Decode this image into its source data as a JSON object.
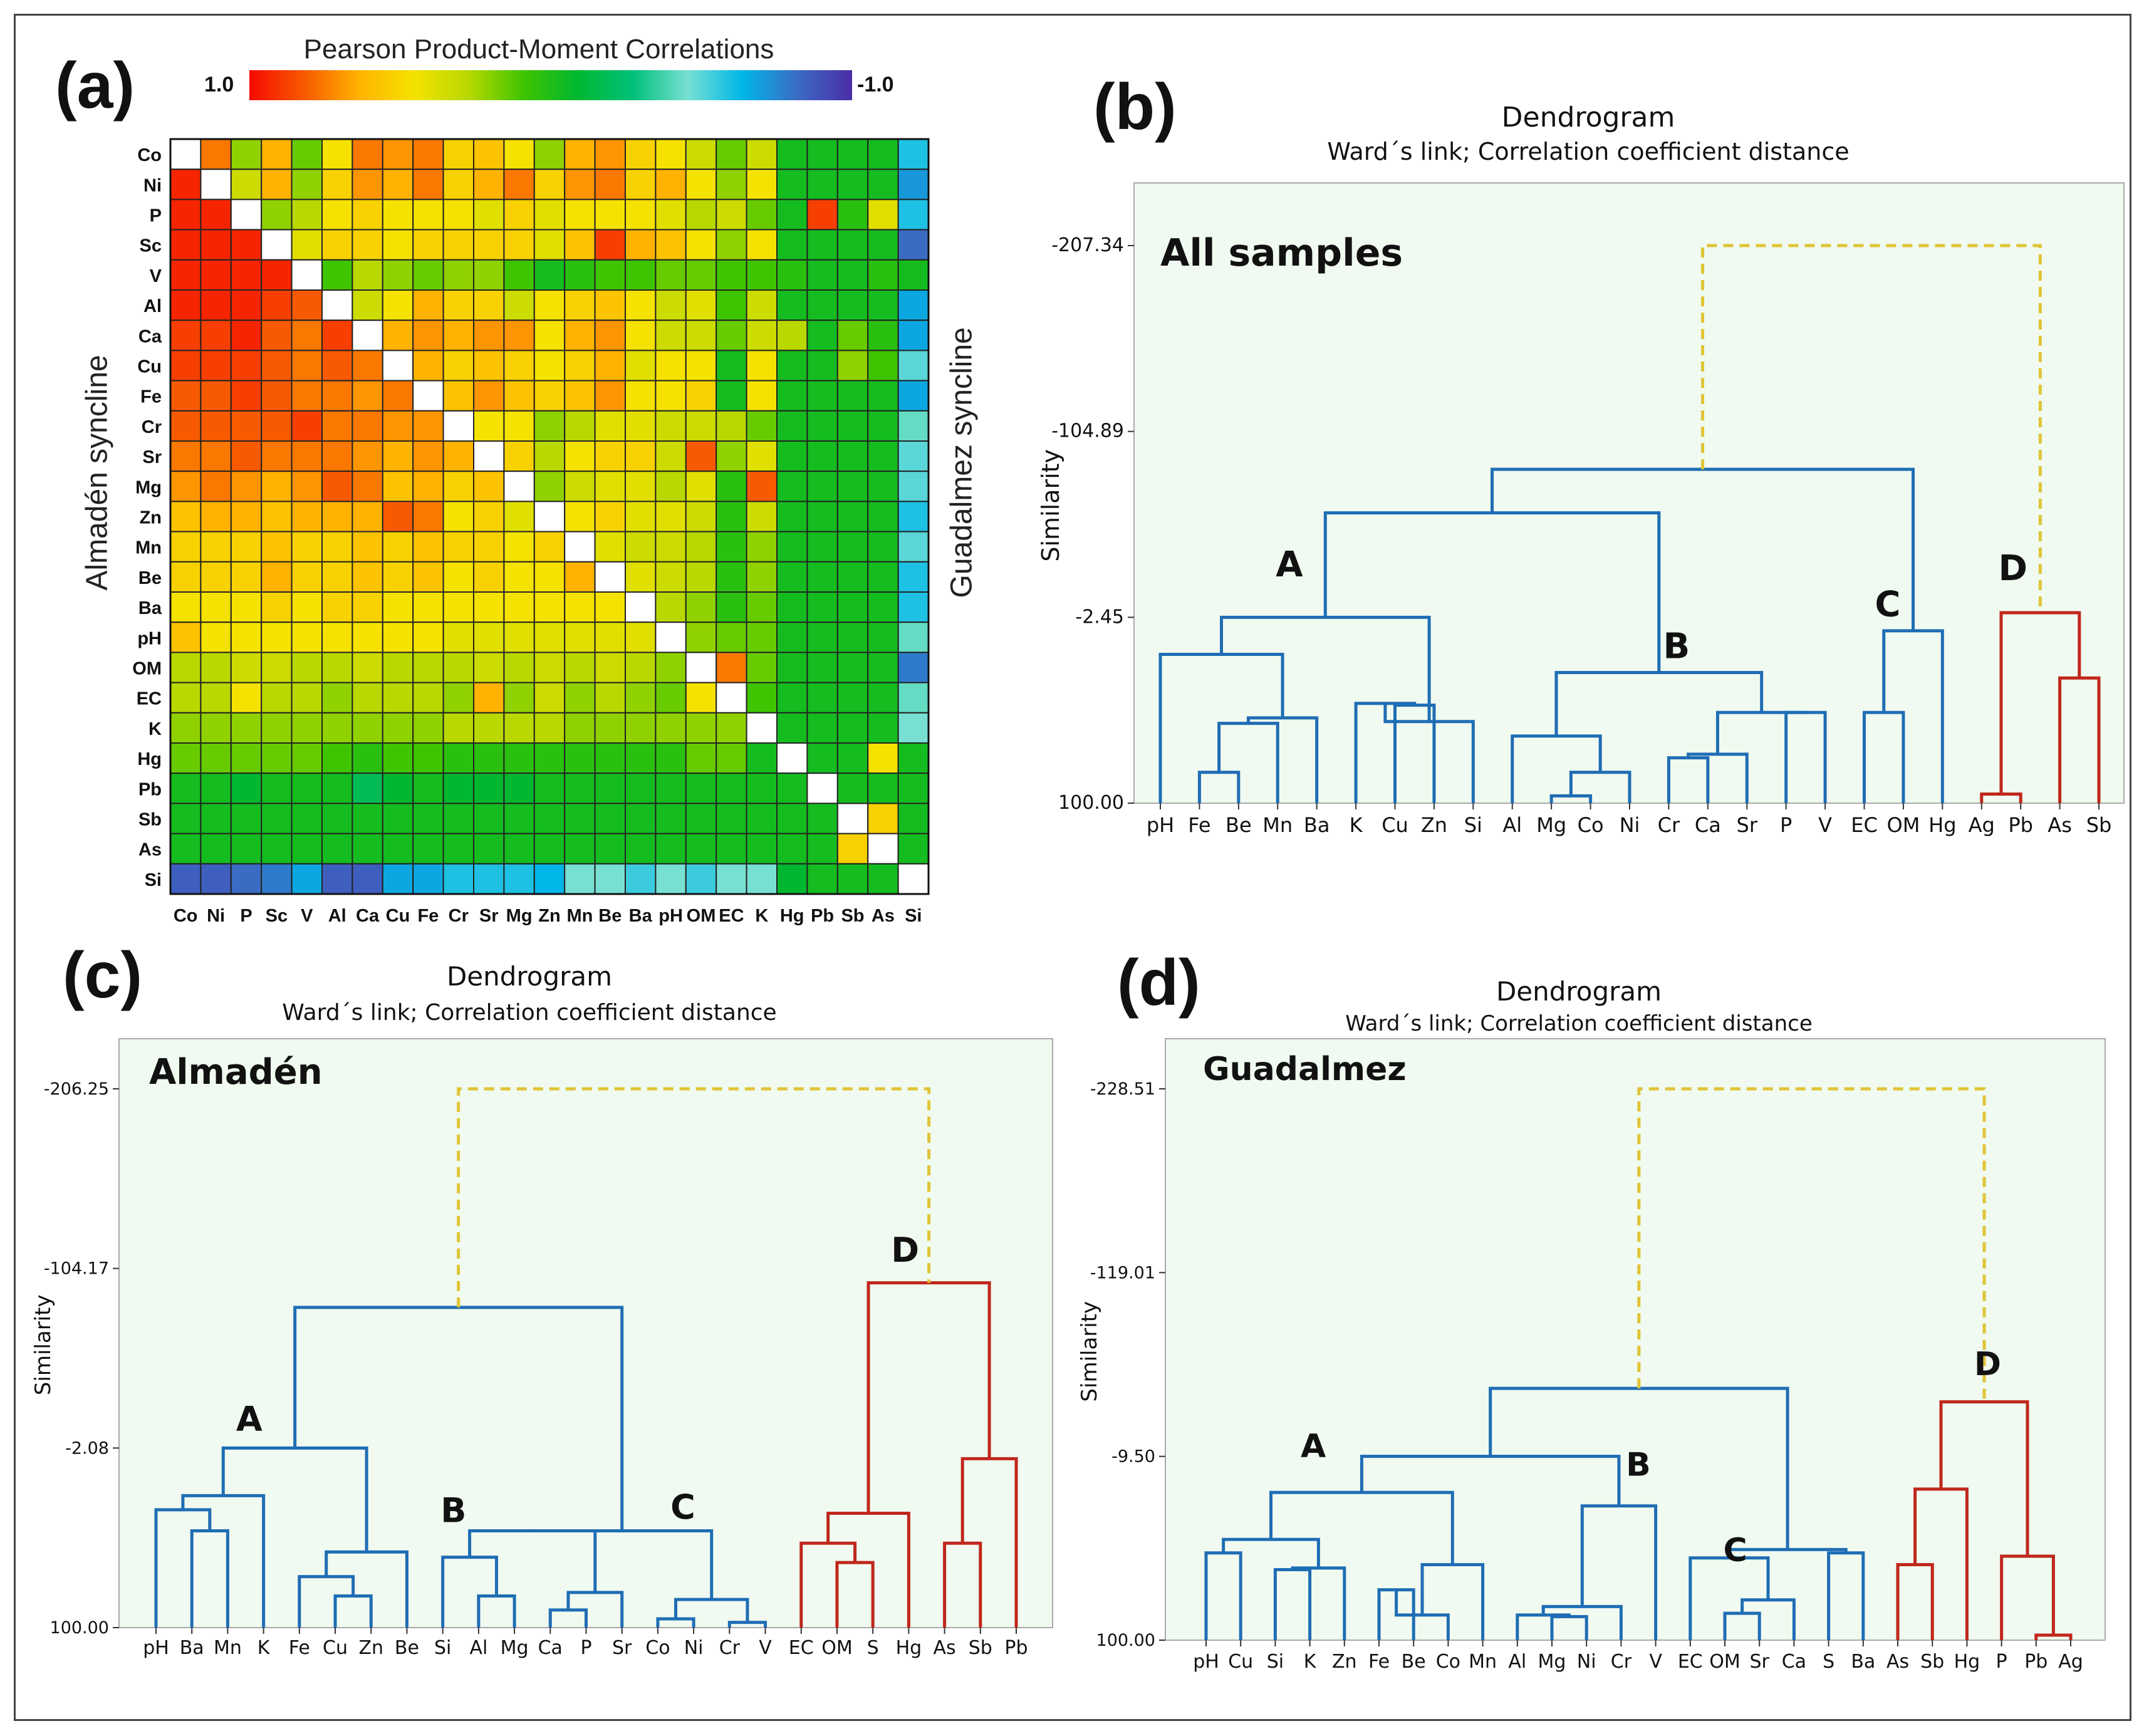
{
  "panels": {
    "a": "(a)",
    "b": "(b)",
    "c": "(c)",
    "d": "(d)"
  },
  "heatmap": {
    "title": "Pearson Product-Moment Correlations",
    "scale_max": "1.0",
    "scale_min": "-1.0",
    "left_label": "Almadén syncline",
    "right_label": "Guadalmez syncline"
  },
  "dendro_common": {
    "title": "Dendrogram",
    "subtitle": "Ward´s link; Correlation coefficient distance",
    "ylabel": "Similarity"
  },
  "colors": {
    "blue": "#1f6db5",
    "red": "#c0271d",
    "yellow": "#e0c435",
    "panel_bg": "#f0faf0",
    "panel_border": "#aaaaaa"
  },
  "chart_data": [
    {
      "type": "heatmap",
      "title": "Pearson Product-Moment Correlations",
      "labels": [
        "Co",
        "Ni",
        "P",
        "Sc",
        "V",
        "Al",
        "Ca",
        "Cu",
        "Fe",
        "Cr",
        "Sr",
        "Mg",
        "Zn",
        "Mn",
        "Be",
        "Ba",
        "pH",
        "OM",
        "EC",
        "K",
        "Hg",
        "Pb",
        "Sb",
        "As",
        "Si"
      ],
      "range": [
        -1.0,
        1.0
      ],
      "lower_triangle": "Almadén syncline",
      "upper_triangle": "Guadalmez syncline",
      "values": [
        [
          1,
          0.8,
          0.35,
          0.7,
          0.3,
          0.55,
          0.8,
          0.75,
          0.8,
          0.6,
          0.65,
          0.55,
          0.35,
          0.7,
          0.75,
          0.6,
          0.55,
          0.45,
          0.3,
          0.45,
          0.15,
          0.15,
          0.15,
          0.15,
          -0.45
        ],
        [
          0.95,
          1,
          0.45,
          0.7,
          0.35,
          0.6,
          0.75,
          0.7,
          0.8,
          0.6,
          0.7,
          0.8,
          0.6,
          0.75,
          0.8,
          0.6,
          0.7,
          0.55,
          0.35,
          0.55,
          0.15,
          0.15,
          0.15,
          0.15,
          -0.6
        ],
        [
          0.95,
          0.95,
          1,
          0.35,
          0.4,
          0.55,
          0.6,
          0.55,
          0.55,
          0.55,
          0.5,
          0.6,
          0.5,
          0.55,
          0.55,
          0.55,
          0.5,
          0.4,
          0.45,
          0.3,
          0.15,
          0.9,
          0.2,
          0.5,
          -0.45
        ],
        [
          0.95,
          0.95,
          0.95,
          1,
          0.5,
          0.6,
          0.6,
          0.55,
          0.6,
          0.6,
          0.6,
          0.6,
          0.5,
          0.65,
          0.9,
          0.7,
          0.65,
          0.55,
          0.35,
          0.55,
          0.15,
          0.15,
          0.15,
          0.15,
          -0.75
        ],
        [
          0.95,
          0.95,
          0.95,
          0.95,
          1,
          0.25,
          0.4,
          0.35,
          0.3,
          0.35,
          0.35,
          0.25,
          0.15,
          0.2,
          0.25,
          0.25,
          0.3,
          0.3,
          0.25,
          0.25,
          0.2,
          0.15,
          0.15,
          0.2,
          0.15
        ],
        [
          0.95,
          0.95,
          0.95,
          0.9,
          0.85,
          1,
          0.45,
          0.55,
          0.7,
          0.6,
          0.6,
          0.45,
          0.55,
          0.6,
          0.65,
          0.55,
          0.45,
          0.5,
          0.25,
          0.45,
          0.15,
          0.15,
          0.15,
          0.15,
          -0.55
        ],
        [
          0.9,
          0.9,
          0.95,
          0.85,
          0.8,
          0.9,
          1,
          0.7,
          0.75,
          0.7,
          0.75,
          0.75,
          0.55,
          0.7,
          0.75,
          0.55,
          0.45,
          0.45,
          0.3,
          0.45,
          0.4,
          0.15,
          0.3,
          0.2,
          -0.55
        ],
        [
          0.9,
          0.9,
          0.9,
          0.85,
          0.8,
          0.85,
          0.8,
          1,
          0.7,
          0.6,
          0.65,
          0.6,
          0.55,
          0.6,
          0.7,
          0.5,
          0.55,
          0.55,
          0.15,
          0.55,
          0.15,
          0.15,
          0.35,
          0.25,
          -0.35
        ],
        [
          0.85,
          0.85,
          0.9,
          0.85,
          0.8,
          0.8,
          0.75,
          0.8,
          1,
          0.65,
          0.75,
          0.65,
          0.6,
          0.65,
          0.75,
          0.55,
          0.55,
          0.6,
          0.15,
          0.55,
          0.15,
          0.15,
          0.15,
          0.15,
          -0.55
        ],
        [
          0.85,
          0.85,
          0.85,
          0.85,
          0.9,
          0.8,
          0.8,
          0.75,
          0.75,
          1,
          0.55,
          0.55,
          0.35,
          0.4,
          0.5,
          0.5,
          0.45,
          0.45,
          0.4,
          0.3,
          0.15,
          0.15,
          0.15,
          0.15,
          -0.25
        ],
        [
          0.8,
          0.8,
          0.85,
          0.8,
          0.8,
          0.8,
          0.75,
          0.7,
          0.75,
          0.7,
          1,
          0.6,
          0.4,
          0.55,
          0.6,
          0.6,
          0.45,
          0.85,
          0.35,
          0.5,
          0.15,
          0.15,
          0.15,
          0.15,
          -0.35
        ],
        [
          0.75,
          0.8,
          0.75,
          0.7,
          0.75,
          0.85,
          0.8,
          0.65,
          0.7,
          0.6,
          0.65,
          1,
          0.35,
          0.45,
          0.5,
          0.5,
          0.4,
          0.5,
          0.2,
          0.85,
          0.15,
          0.15,
          0.15,
          0.15,
          -0.35
        ],
        [
          0.65,
          0.7,
          0.7,
          0.65,
          0.7,
          0.7,
          0.7,
          0.85,
          0.8,
          0.55,
          0.6,
          0.5,
          1,
          0.55,
          0.6,
          0.5,
          0.5,
          0.45,
          0.2,
          0.45,
          0.15,
          0.15,
          0.15,
          0.15,
          -0.45
        ],
        [
          0.6,
          0.6,
          0.6,
          0.65,
          0.6,
          0.6,
          0.65,
          0.6,
          0.65,
          0.6,
          0.6,
          0.55,
          0.6,
          1,
          0.5,
          0.45,
          0.45,
          0.4,
          0.2,
          0.35,
          0.15,
          0.15,
          0.15,
          0.15,
          -0.35
        ],
        [
          0.6,
          0.6,
          0.6,
          0.7,
          0.6,
          0.6,
          0.65,
          0.6,
          0.65,
          0.55,
          0.6,
          0.55,
          0.55,
          0.7,
          1,
          0.5,
          0.45,
          0.4,
          0.2,
          0.35,
          0.15,
          0.15,
          0.15,
          0.15,
          -0.45
        ],
        [
          0.55,
          0.55,
          0.55,
          0.6,
          0.55,
          0.6,
          0.6,
          0.55,
          0.55,
          0.55,
          0.55,
          0.55,
          0.55,
          0.55,
          0.55,
          1,
          0.4,
          0.35,
          0.2,
          0.3,
          0.15,
          0.15,
          0.15,
          0.15,
          -0.45
        ],
        [
          0.65,
          0.55,
          0.55,
          0.55,
          0.55,
          0.55,
          0.55,
          0.55,
          0.55,
          0.5,
          0.5,
          0.5,
          0.5,
          0.5,
          0.5,
          0.5,
          1,
          0.35,
          0.3,
          0.3,
          0.15,
          0.15,
          0.15,
          0.15,
          -0.25
        ],
        [
          0.4,
          0.4,
          0.45,
          0.45,
          0.4,
          0.4,
          0.45,
          0.4,
          0.4,
          0.4,
          0.45,
          0.4,
          0.45,
          0.4,
          0.45,
          0.4,
          0.35,
          1,
          0.8,
          0.3,
          0.15,
          0.15,
          0.15,
          0.15,
          -0.7
        ],
        [
          0.4,
          0.4,
          0.55,
          0.4,
          0.4,
          0.35,
          0.4,
          0.4,
          0.4,
          0.35,
          0.7,
          0.35,
          0.45,
          0.35,
          0.4,
          0.35,
          0.3,
          0.55,
          1,
          0.25,
          0.15,
          0.15,
          0.15,
          0.15,
          -0.25
        ],
        [
          0.35,
          0.35,
          0.35,
          0.35,
          0.35,
          0.35,
          0.35,
          0.35,
          0.35,
          0.4,
          0.4,
          0.4,
          0.4,
          0.35,
          0.35,
          0.35,
          0.35,
          0.35,
          0.35,
          1,
          0.15,
          0.15,
          0.15,
          0.15,
          -0.3
        ],
        [
          0.3,
          0.3,
          0.3,
          0.3,
          0.3,
          0.25,
          0.2,
          0.25,
          0.25,
          0.2,
          0.2,
          0.2,
          0.2,
          0.2,
          0.2,
          0.2,
          0.2,
          0.3,
          0.3,
          0.15,
          1,
          0.15,
          0.15,
          0.55,
          0.15
        ],
        [
          0.15,
          0.15,
          0.1,
          0.15,
          0.15,
          0.15,
          0.05,
          0.1,
          0.15,
          0.1,
          0.1,
          0.1,
          0.15,
          0.15,
          0.15,
          0.15,
          0.15,
          0.15,
          0.15,
          0.15,
          0.15,
          1,
          0.15,
          0.15,
          0.15
        ],
        [
          0.15,
          0.15,
          0.15,
          0.15,
          0.15,
          0.15,
          0.15,
          0.15,
          0.15,
          0.15,
          0.15,
          0.15,
          0.15,
          0.15,
          0.15,
          0.15,
          0.15,
          0.15,
          0.15,
          0.15,
          0.15,
          0.15,
          1,
          0.6,
          0.15
        ],
        [
          0.15,
          0.15,
          0.15,
          0.15,
          0.15,
          0.15,
          0.15,
          0.15,
          0.15,
          0.15,
          0.15,
          0.15,
          0.15,
          0.15,
          0.15,
          0.15,
          0.15,
          0.15,
          0.15,
          0.15,
          0.15,
          0.15,
          0.6,
          1,
          0.15
        ],
        [
          -0.8,
          -0.8,
          -0.75,
          -0.7,
          -0.55,
          -0.8,
          -0.8,
          -0.55,
          -0.55,
          -0.45,
          -0.45,
          -0.45,
          -0.5,
          -0.3,
          -0.3,
          -0.4,
          -0.3,
          -0.4,
          -0.3,
          -0.3,
          0.1,
          0.15,
          0.15,
          0.15,
          1
        ]
      ]
    },
    {
      "type": "dendrogram",
      "panel": "b",
      "sample_label": "All samples",
      "title": "Dendrogram",
      "subtitle": "Ward´s link; Correlation coefficient distance",
      "ylabel": "Similarity",
      "yticks": [
        "-207.34",
        "-104.89",
        "-2.45",
        "100.00"
      ],
      "ytick_values": [
        -207.34,
        -104.89,
        -2.45,
        100.0
      ],
      "leaves": [
        "pH",
        "Fe",
        "Be",
        "Mn",
        "Ba",
        "K",
        "Cu",
        "Zn",
        "Si",
        "Al",
        "Mg",
        "Co",
        "Ni",
        "Cr",
        "Ca",
        "Sr",
        "P",
        "V",
        "EC",
        "OM",
        "Hg",
        "Ag",
        "Pb",
        "As",
        "Sb"
      ],
      "cluster_labels": [
        "A",
        "B",
        "C",
        "D"
      ]
    },
    {
      "type": "dendrogram",
      "panel": "c",
      "sample_label": "Almadén",
      "title": "Dendrogram",
      "subtitle": "Ward´s link; Correlation coefficient distance",
      "ylabel": "Similarity",
      "yticks": [
        "-206.25",
        "-104.17",
        "-2.08",
        "100.00"
      ],
      "ytick_values": [
        -206.25,
        -104.17,
        -2.08,
        100.0
      ],
      "leaves": [
        "pH",
        "Ba",
        "Mn",
        "K",
        "Fe",
        "Cu",
        "Zn",
        "Be",
        "Si",
        "Al",
        "Mg",
        "Ca",
        "P",
        "Sr",
        "Co",
        "Ni",
        "Cr",
        "V",
        "EC",
        "OM",
        "S",
        "Hg",
        "As",
        "Sb",
        "Pb"
      ],
      "cluster_labels": [
        "A",
        "B",
        "C",
        "D"
      ]
    },
    {
      "type": "dendrogram",
      "panel": "d",
      "sample_label": "Guadalmez",
      "title": "Dendrogram",
      "subtitle": "Ward´s link; Correlation coefficient distance",
      "ylabel": "Similarity",
      "yticks": [
        "-228.51",
        "-119.01",
        "-9.50",
        "100.00"
      ],
      "ytick_values": [
        -228.51,
        -119.01,
        -9.5,
        100.0
      ],
      "leaves": [
        "pH",
        "Cu",
        "Si",
        "K",
        "Zn",
        "Fe",
        "Be",
        "Co",
        "Mn",
        "Al",
        "Mg",
        "Ni",
        "Cr",
        "V",
        "EC",
        "OM",
        "Sr",
        "Ca",
        "S",
        "Ba",
        "As",
        "Sb",
        "Hg",
        "P",
        "Pb",
        "Ag"
      ],
      "cluster_labels": [
        "A",
        "B",
        "C",
        "D"
      ]
    }
  ]
}
